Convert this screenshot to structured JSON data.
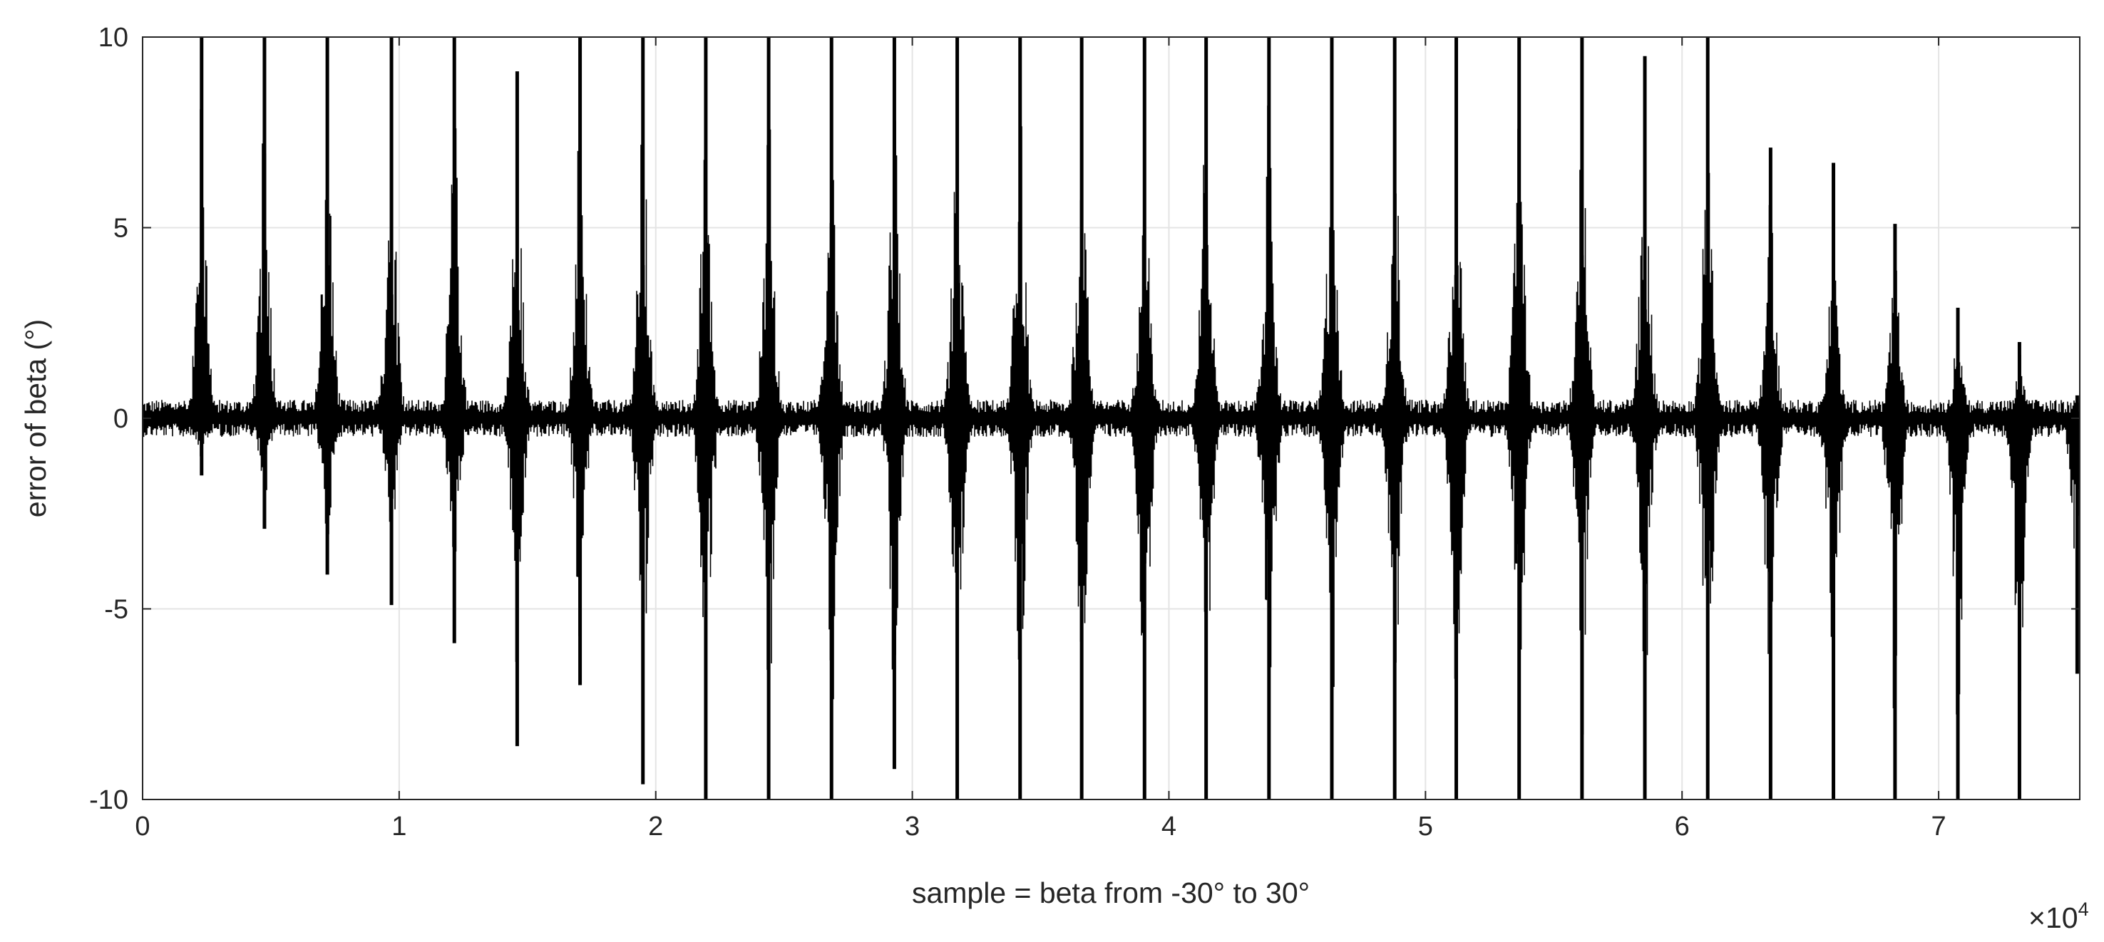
{
  "chart_data": {
    "type": "line",
    "title": "",
    "xlabel": "sample = beta from -30° to 30°",
    "ylabel": "error of beta (°)",
    "x_multiplier_label": "×10",
    "x_multiplier_exponent": "4",
    "xlim": [
      0,
      75500
    ],
    "ylim": [
      -10,
      10
    ],
    "grid": true,
    "x_ticks": [
      0,
      1,
      2,
      3,
      4,
      5,
      6,
      7
    ],
    "x_tick_labels": [
      "0",
      "1",
      "2",
      "3",
      "4",
      "5",
      "6",
      "7"
    ],
    "y_ticks": [
      -10,
      -5,
      0,
      5,
      10
    ],
    "y_tick_labels": [
      "-10",
      "-5",
      "0",
      "5",
      "10"
    ],
    "line_color": "#000000",
    "noise_amplitude": 0.35,
    "spikes": [
      {
        "x": 2300,
        "max": 10,
        "min": -1.5
      },
      {
        "x": 4750,
        "max": 10,
        "min": -2.9
      },
      {
        "x": 7200,
        "max": 10,
        "min": -4.1
      },
      {
        "x": 9700,
        "max": 10,
        "min": -4.9
      },
      {
        "x": 12150,
        "max": 10,
        "min": -5.9
      },
      {
        "x": 14600,
        "max": 9.1,
        "min": -8.6
      },
      {
        "x": 17050,
        "max": 10,
        "min": -7.0
      },
      {
        "x": 19500,
        "max": 10,
        "min": -9.6
      },
      {
        "x": 21950,
        "max": 10,
        "min": -10
      },
      {
        "x": 24400,
        "max": 10,
        "min": -10
      },
      {
        "x": 26850,
        "max": 10,
        "min": -10
      },
      {
        "x": 29300,
        "max": 10,
        "min": -9.2
      },
      {
        "x": 31750,
        "max": 10,
        "min": -10
      },
      {
        "x": 34200,
        "max": 10,
        "min": -10
      },
      {
        "x": 36600,
        "max": 10,
        "min": -10
      },
      {
        "x": 39050,
        "max": 10,
        "min": -10
      },
      {
        "x": 41450,
        "max": 10,
        "min": -10
      },
      {
        "x": 43900,
        "max": 10,
        "min": -10
      },
      {
        "x": 46350,
        "max": 10,
        "min": -10
      },
      {
        "x": 48800,
        "max": 10,
        "min": -10
      },
      {
        "x": 51200,
        "max": 10,
        "min": -10
      },
      {
        "x": 53650,
        "max": 10,
        "min": -10
      },
      {
        "x": 56100,
        "max": 10,
        "min": -10
      },
      {
        "x": 58550,
        "max": 9.5,
        "min": -10
      },
      {
        "x": 61000,
        "max": 10,
        "min": -10
      },
      {
        "x": 63450,
        "max": 7.1,
        "min": -10
      },
      {
        "x": 65900,
        "max": 6.7,
        "min": -10
      },
      {
        "x": 68300,
        "max": 5.1,
        "min": -10
      },
      {
        "x": 70750,
        "max": 2.9,
        "min": -10
      },
      {
        "x": 73150,
        "max": 2.0,
        "min": -10
      },
      {
        "x": 75400,
        "max": 0.6,
        "min": -6.7
      }
    ]
  }
}
